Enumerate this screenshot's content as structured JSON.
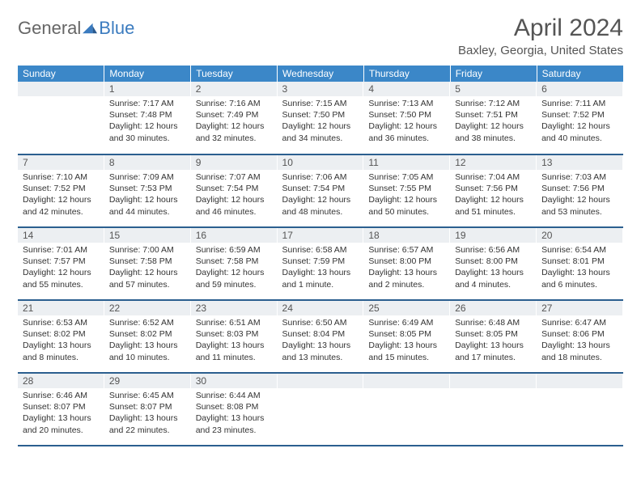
{
  "logo": {
    "text1": "General",
    "text2": "Blue"
  },
  "title": "April 2024",
  "location": "Baxley, Georgia, United States",
  "colors": {
    "header_bg": "#3b87c8",
    "header_text": "#ffffff",
    "daynum_bg": "#eceff2",
    "border": "#2b5f8f",
    "logo_blue": "#3b7bbf",
    "logo_gray": "#666666"
  },
  "weekdays": [
    "Sunday",
    "Monday",
    "Tuesday",
    "Wednesday",
    "Thursday",
    "Friday",
    "Saturday"
  ],
  "start_offset": 1,
  "days": [
    {
      "n": 1,
      "sr": "7:17 AM",
      "ss": "7:48 PM",
      "dl": "12 hours and 30 minutes."
    },
    {
      "n": 2,
      "sr": "7:16 AM",
      "ss": "7:49 PM",
      "dl": "12 hours and 32 minutes."
    },
    {
      "n": 3,
      "sr": "7:15 AM",
      "ss": "7:50 PM",
      "dl": "12 hours and 34 minutes."
    },
    {
      "n": 4,
      "sr": "7:13 AM",
      "ss": "7:50 PM",
      "dl": "12 hours and 36 minutes."
    },
    {
      "n": 5,
      "sr": "7:12 AM",
      "ss": "7:51 PM",
      "dl": "12 hours and 38 minutes."
    },
    {
      "n": 6,
      "sr": "7:11 AM",
      "ss": "7:52 PM",
      "dl": "12 hours and 40 minutes."
    },
    {
      "n": 7,
      "sr": "7:10 AM",
      "ss": "7:52 PM",
      "dl": "12 hours and 42 minutes."
    },
    {
      "n": 8,
      "sr": "7:09 AM",
      "ss": "7:53 PM",
      "dl": "12 hours and 44 minutes."
    },
    {
      "n": 9,
      "sr": "7:07 AM",
      "ss": "7:54 PM",
      "dl": "12 hours and 46 minutes."
    },
    {
      "n": 10,
      "sr": "7:06 AM",
      "ss": "7:54 PM",
      "dl": "12 hours and 48 minutes."
    },
    {
      "n": 11,
      "sr": "7:05 AM",
      "ss": "7:55 PM",
      "dl": "12 hours and 50 minutes."
    },
    {
      "n": 12,
      "sr": "7:04 AM",
      "ss": "7:56 PM",
      "dl": "12 hours and 51 minutes."
    },
    {
      "n": 13,
      "sr": "7:03 AM",
      "ss": "7:56 PM",
      "dl": "12 hours and 53 minutes."
    },
    {
      "n": 14,
      "sr": "7:01 AM",
      "ss": "7:57 PM",
      "dl": "12 hours and 55 minutes."
    },
    {
      "n": 15,
      "sr": "7:00 AM",
      "ss": "7:58 PM",
      "dl": "12 hours and 57 minutes."
    },
    {
      "n": 16,
      "sr": "6:59 AM",
      "ss": "7:58 PM",
      "dl": "12 hours and 59 minutes."
    },
    {
      "n": 17,
      "sr": "6:58 AM",
      "ss": "7:59 PM",
      "dl": "13 hours and 1 minute."
    },
    {
      "n": 18,
      "sr": "6:57 AM",
      "ss": "8:00 PM",
      "dl": "13 hours and 2 minutes."
    },
    {
      "n": 19,
      "sr": "6:56 AM",
      "ss": "8:00 PM",
      "dl": "13 hours and 4 minutes."
    },
    {
      "n": 20,
      "sr": "6:54 AM",
      "ss": "8:01 PM",
      "dl": "13 hours and 6 minutes."
    },
    {
      "n": 21,
      "sr": "6:53 AM",
      "ss": "8:02 PM",
      "dl": "13 hours and 8 minutes."
    },
    {
      "n": 22,
      "sr": "6:52 AM",
      "ss": "8:02 PM",
      "dl": "13 hours and 10 minutes."
    },
    {
      "n": 23,
      "sr": "6:51 AM",
      "ss": "8:03 PM",
      "dl": "13 hours and 11 minutes."
    },
    {
      "n": 24,
      "sr": "6:50 AM",
      "ss": "8:04 PM",
      "dl": "13 hours and 13 minutes."
    },
    {
      "n": 25,
      "sr": "6:49 AM",
      "ss": "8:05 PM",
      "dl": "13 hours and 15 minutes."
    },
    {
      "n": 26,
      "sr": "6:48 AM",
      "ss": "8:05 PM",
      "dl": "13 hours and 17 minutes."
    },
    {
      "n": 27,
      "sr": "6:47 AM",
      "ss": "8:06 PM",
      "dl": "13 hours and 18 minutes."
    },
    {
      "n": 28,
      "sr": "6:46 AM",
      "ss": "8:07 PM",
      "dl": "13 hours and 20 minutes."
    },
    {
      "n": 29,
      "sr": "6:45 AM",
      "ss": "8:07 PM",
      "dl": "13 hours and 22 minutes."
    },
    {
      "n": 30,
      "sr": "6:44 AM",
      "ss": "8:08 PM",
      "dl": "13 hours and 23 minutes."
    }
  ],
  "labels": {
    "sunrise": "Sunrise:",
    "sunset": "Sunset:",
    "daylight": "Daylight:"
  }
}
